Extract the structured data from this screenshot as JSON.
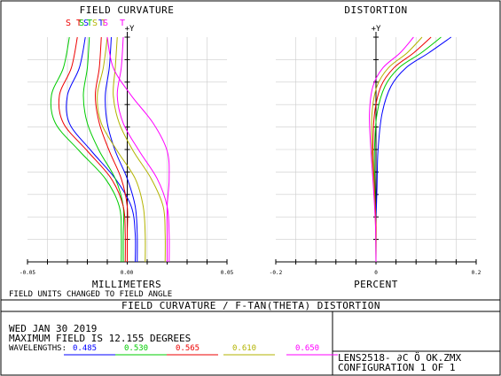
{
  "colors": {
    "blue": "#0000ff",
    "green": "#00cc00",
    "red": "#ee0000",
    "olive": "#b3b300",
    "magenta": "#ff00ff",
    "grid": "#cccccc"
  },
  "chart_data": [
    {
      "type": "line",
      "title": "FIELD CURVATURE",
      "xlabel": "MILLIMETERS",
      "ylabel": "+Y",
      "xlim": [
        -0.05,
        0.05
      ],
      "ylim": [
        0,
        12.155
      ],
      "x_tick_labels": [
        "-0.05",
        "0.00",
        "0.05"
      ],
      "grid": true,
      "legend_letters": [
        {
          "text": "S",
          "color": "#ee0000"
        },
        {
          "text": "T",
          "color": "#ee0000"
        },
        {
          "text": "S",
          "color": "#00cc00"
        },
        {
          "text": "S",
          "color": "#0000ff"
        },
        {
          "text": "T",
          "color": "#00cc00"
        },
        {
          "text": "S",
          "color": "#b3b300"
        },
        {
          "text": "T",
          "color": "#0000ff"
        },
        {
          "text": "T",
          "color": "#b3b300"
        },
        {
          "text": "S",
          "color": "#ff00ff"
        },
        {
          "text": "T",
          "color": "#ff00ff"
        }
      ],
      "series": [
        {
          "color": "#0000ff",
          "y": [
            0,
            1.5,
            3,
            4.5,
            6,
            7.5,
            9,
            10.5,
            12.155
          ],
          "x": [
            0.004,
            0.004,
            0.002,
            -0.006,
            -0.018,
            -0.029,
            -0.03,
            -0.024,
            -0.021
          ]
        },
        {
          "color": "#0000ff",
          "y": [
            0,
            1.5,
            3,
            4.5,
            6,
            7.5,
            9,
            10.5,
            12.155
          ],
          "x": [
            0.005,
            0.005,
            0.004,
            0.0,
            -0.006,
            -0.01,
            -0.011,
            -0.009,
            -0.008
          ]
        },
        {
          "color": "#00cc00",
          "y": [
            0,
            1.5,
            3,
            4.5,
            6,
            7.5,
            9,
            10.5,
            12.155
          ],
          "x": [
            -0.003,
            -0.003,
            -0.004,
            -0.011,
            -0.024,
            -0.036,
            -0.038,
            -0.032,
            -0.029
          ]
        },
        {
          "color": "#00cc00",
          "y": [
            0,
            1.5,
            3,
            4.5,
            6,
            7.5,
            9,
            10.5,
            12.155
          ],
          "x": [
            -0.002,
            -0.002,
            -0.002,
            -0.006,
            -0.014,
            -0.02,
            -0.022,
            -0.02,
            -0.019
          ]
        },
        {
          "color": "#ee0000",
          "y": [
            0,
            1.5,
            3,
            4.5,
            6,
            7.5,
            9,
            10.5,
            12.155
          ],
          "x": [
            -0.001,
            -0.001,
            -0.002,
            -0.008,
            -0.02,
            -0.032,
            -0.034,
            -0.028,
            -0.025
          ]
        },
        {
          "color": "#ee0000",
          "y": [
            0,
            1.5,
            3,
            4.5,
            6,
            7.5,
            9,
            10.5,
            12.155
          ],
          "x": [
            0.0,
            0.0,
            0.0,
            -0.003,
            -0.009,
            -0.014,
            -0.016,
            -0.014,
            -0.013
          ]
        },
        {
          "color": "#b3b300",
          "y": [
            0,
            1.5,
            3,
            4.5,
            6,
            7.5,
            9,
            10.5,
            12.155
          ],
          "x": [
            0.009,
            0.009,
            0.008,
            0.004,
            -0.005,
            -0.013,
            -0.015,
            -0.012,
            -0.01
          ]
        },
        {
          "color": "#b3b300",
          "y": [
            0,
            1.5,
            3,
            4.5,
            6,
            7.5,
            9,
            10.5,
            12.155
          ],
          "x": [
            0.019,
            0.019,
            0.018,
            0.012,
            0.003,
            -0.004,
            -0.007,
            -0.006,
            -0.005
          ]
        },
        {
          "color": "#ff00ff",
          "y": [
            0,
            1.5,
            3,
            4.5,
            6,
            7.5,
            9,
            10.5,
            12.155
          ],
          "x": [
            0.021,
            0.021,
            0.02,
            0.015,
            0.006,
            -0.002,
            -0.005,
            -0.003,
            -0.002
          ]
        },
        {
          "color": "#ff00ff",
          "y": [
            0,
            1.5,
            3,
            4.5,
            6,
            7.5,
            9,
            10.5,
            12.155
          ],
          "x": [
            0.02,
            0.02,
            0.02,
            0.021,
            0.02,
            0.013,
            0.002,
            -0.007,
            -0.01
          ]
        }
      ]
    },
    {
      "type": "line",
      "title": "DISTORTION",
      "xlabel": "PERCENT",
      "ylabel": "+Y",
      "xlim": [
        -0.2,
        0.2
      ],
      "ylim": [
        0,
        12.155
      ],
      "x_tick_labels": [
        "-0.2",
        "0",
        "0.2"
      ],
      "grid": true,
      "series": [
        {
          "color": "#0000ff",
          "y": [
            0,
            2,
            4,
            6,
            8,
            9.5,
            10.5,
            11.3,
            12.155
          ],
          "x": [
            0.0,
            0.0,
            0.002,
            0.004,
            0.012,
            0.03,
            0.06,
            0.105,
            0.15
          ]
        },
        {
          "color": "#00cc00",
          "y": [
            0,
            2,
            4,
            6,
            8,
            9.5,
            10.5,
            11.3,
            12.155
          ],
          "x": [
            0.0,
            0.0,
            -0.002,
            -0.003,
            0.002,
            0.018,
            0.046,
            0.09,
            0.13
          ]
        },
        {
          "color": "#ee0000",
          "y": [
            0,
            2,
            4,
            6,
            8,
            9.5,
            10.5,
            11.3,
            12.155
          ],
          "x": [
            0.0,
            0.0,
            -0.003,
            -0.006,
            -0.003,
            0.01,
            0.036,
            0.075,
            0.11
          ]
        },
        {
          "color": "#b3b300",
          "y": [
            0,
            2,
            4,
            6,
            8,
            9.5,
            10.5,
            11.3,
            12.155
          ],
          "x": [
            0.0,
            -0.001,
            -0.004,
            -0.008,
            -0.008,
            0.002,
            0.025,
            0.062,
            0.092
          ]
        },
        {
          "color": "#ff00ff",
          "y": [
            0,
            2,
            4,
            6,
            8,
            9.5,
            10.5,
            11.3,
            12.155
          ],
          "x": [
            0.0,
            -0.001,
            -0.005,
            -0.01,
            -0.013,
            -0.006,
            0.014,
            0.048,
            0.075
          ]
        }
      ]
    }
  ],
  "footer": {
    "note": "FIELD UNITS CHANGED TO FIELD ANGLE",
    "figure_title": "FIELD CURVATURE / F-TAN(THETA) DISTORTION",
    "date": "WED JAN 30 2019",
    "max_field": "MAXIMUM FIELD IS 12.155 DEGREES",
    "wavelengths_label": "WAVELENGTHS:",
    "wavelengths": [
      {
        "value": "0.485",
        "color": "#0000ff"
      },
      {
        "value": "0.530",
        "color": "#00cc00"
      },
      {
        "value": "0.565",
        "color": "#ee0000"
      },
      {
        "value": "0.610",
        "color": "#b3b300"
      },
      {
        "value": "0.650",
        "color": "#ff00ff"
      }
    ],
    "lens_file": "LENS2518- ∂C Ö OK.ZMX",
    "configuration": "CONFIGURATION 1 OF 1"
  }
}
